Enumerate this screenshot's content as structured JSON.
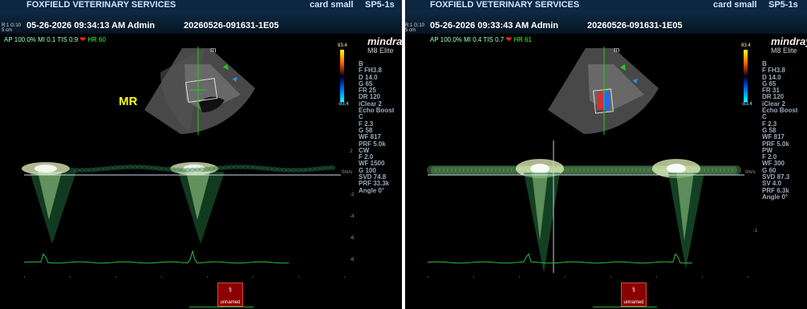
{
  "screens": [
    {
      "header": {
        "clinic": "FOXFIELD VETERINARY SERVICES",
        "probe": "card small",
        "preset": "SP5-1s"
      },
      "tiny_label": "R:1 G:10\n5 cm",
      "datetime": "05-26-2026 09:34:13 AM Admin",
      "exam_id": "20260526-091631-1E05",
      "acoustic": {
        "text": "AP 100.0%  MI 0.1  TIS 0.9 ",
        "hr": "HR 60"
      },
      "brand": "mindray",
      "model": "M8 Elite",
      "colorbar": {
        "top": "83.4",
        "bottom": "-83.4"
      },
      "annotation": "MR",
      "params": "B\nF FH3.8\nD 14.0\nG 65\nFR 25\nDR 120\niClear 2\nEcho Boost\nC\nF 2.3\nG 58\nWF 817\nPRF 5.0k\nCW\nF 2.0\nWF 1500\nG 100\nSVD 74.8\nPRF 33.3k\nAngle 0°",
      "mode": "CW",
      "thumb_label": "unnamed",
      "scale_labels": [
        "2",
        "0m/s",
        "-2",
        "-4",
        "-6",
        "-8"
      ]
    },
    {
      "header": {
        "clinic": "FOXFIELD VETERINARY SERVICES",
        "probe": "card small",
        "preset": "SP5-1s"
      },
      "tiny_label": "R:1 G:10\n5 cm",
      "datetime": "05-26-2026 09:33:43 AM Admin",
      "exam_id": "20260526-091631-1E05",
      "acoustic": {
        "text": "AP 100.0%  MI 0.4  TIS 0.7 ",
        "hr": "HR 61"
      },
      "brand": "mindray",
      "model": "M8 Elite",
      "colorbar": {
        "top": "83.4",
        "bottom": "-83.4"
      },
      "params": "B\nF FH3.8\nD 14.0\nG 65\nFR 31\nDR 120\niClear 2\nEcho Boost\nC\nF 2.3\nG 58\nWF 817\nPRF 5.0k\nPW\nF 2.0\nWF 300\nG 60\nSVD 87.3\nSV 4.0\nPRF 6.3k\nAngle 0°",
      "mode": "PW",
      "thumb_label": "unnamed",
      "scale_labels": [
        "0m/s",
        "-1"
      ]
    }
  ],
  "colors": {
    "header": "#0d2740",
    "ecg": "#2fbf3a",
    "doppler": "#e8f5c0",
    "heart": "#ff2222",
    "annotation": "#ffff22"
  }
}
